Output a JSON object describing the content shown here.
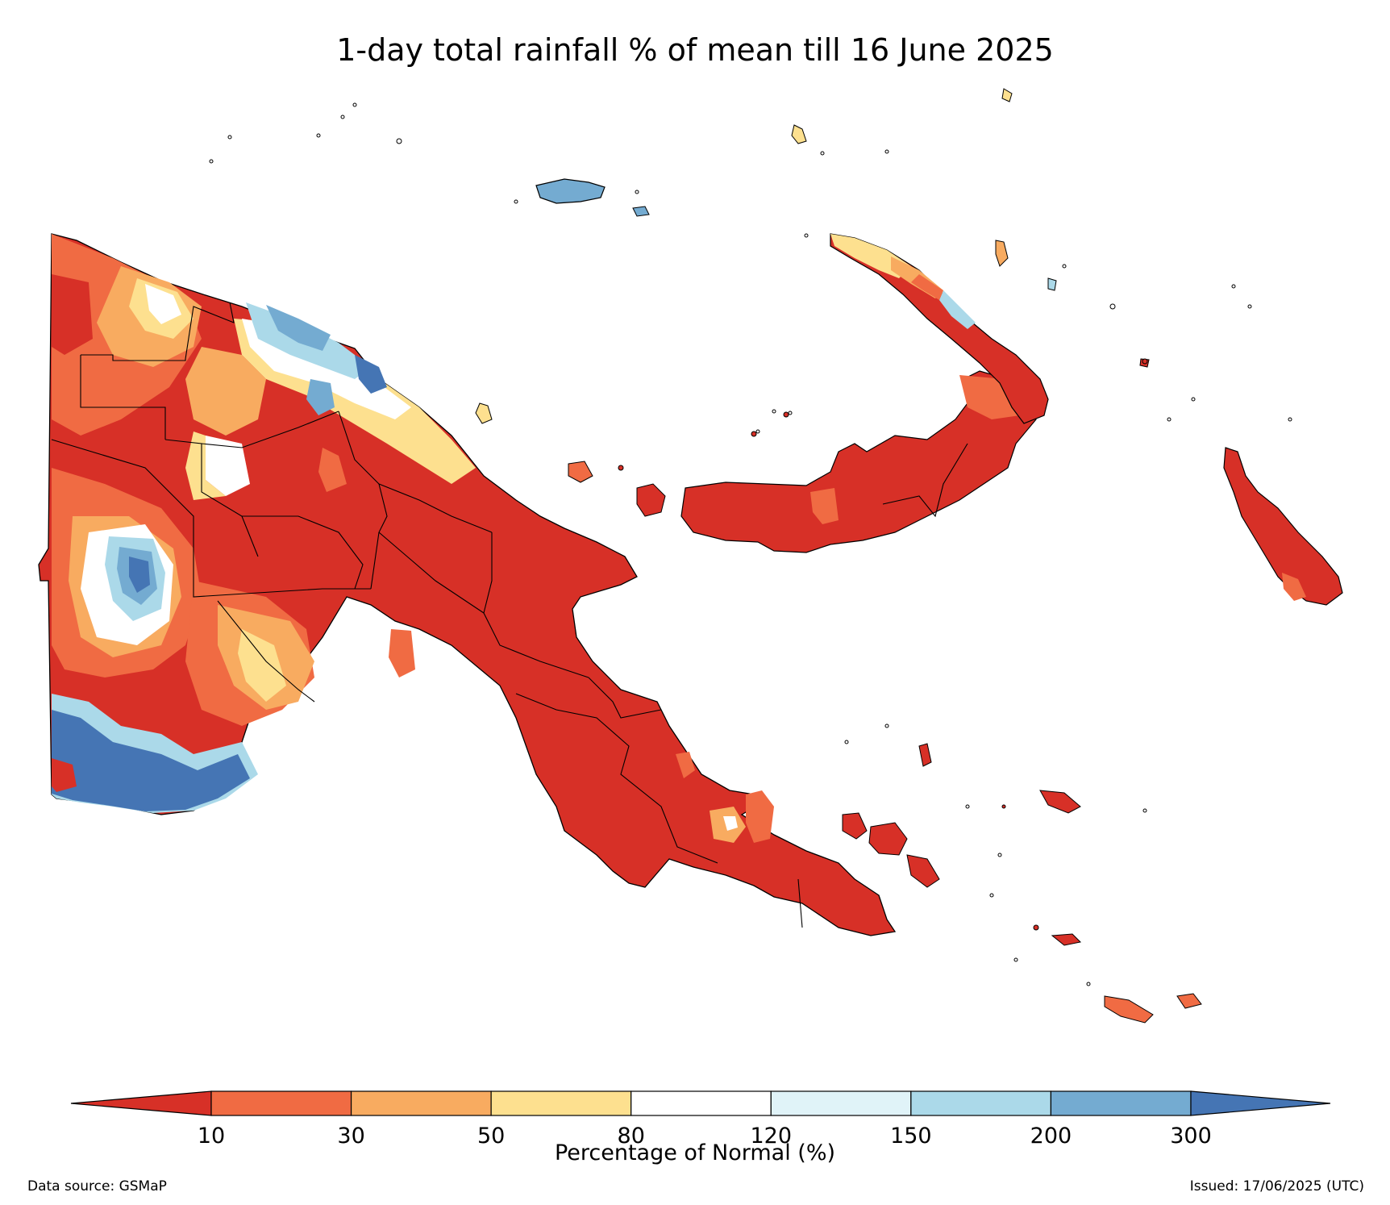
{
  "title": "1-day total rainfall % of mean till 16 June 2025",
  "colorbar": {
    "label": "Percentage of Normal (%)",
    "ticks": [
      "10",
      "30",
      "50",
      "80",
      "120",
      "150",
      "200",
      "300"
    ],
    "colors": [
      "#d73027",
      "#f06b43",
      "#f8ab60",
      "#fde08f",
      "#ffffff",
      "#e0f3f8",
      "#abd9e9",
      "#74abd1",
      "#4575b4"
    ],
    "extend": "both"
  },
  "footer": {
    "source": "Data source: GSMaP",
    "issued": "Issued: 17/06/2025 (UTC)"
  },
  "map": {
    "region": "Papua New Guinea",
    "dominant_category": "below 10",
    "land_color": "#d73027",
    "border_color": "#000000"
  }
}
